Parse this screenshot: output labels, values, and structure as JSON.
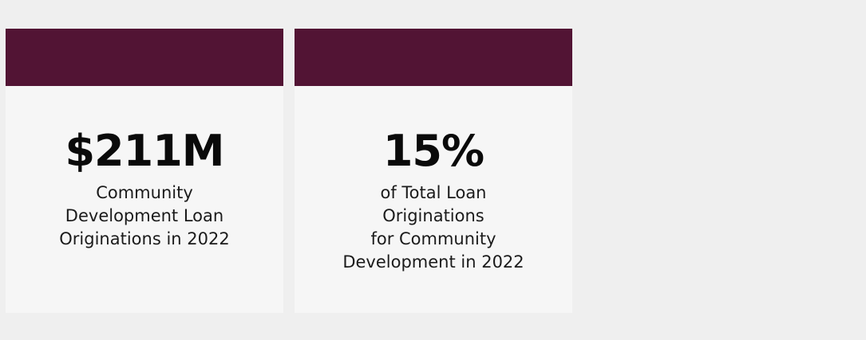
{
  "colors": {
    "background": "#efefef",
    "card_background": "#f6f6f6",
    "accent": "#521434"
  },
  "stats": [
    {
      "value": "$211M",
      "description_lines": [
        "Community",
        "Development Loan",
        "Originations in 2022"
      ]
    },
    {
      "value": "15%",
      "description_lines": [
        "of Total Loan",
        "Originations",
        "for Community",
        "Development in 2022"
      ]
    }
  ]
}
